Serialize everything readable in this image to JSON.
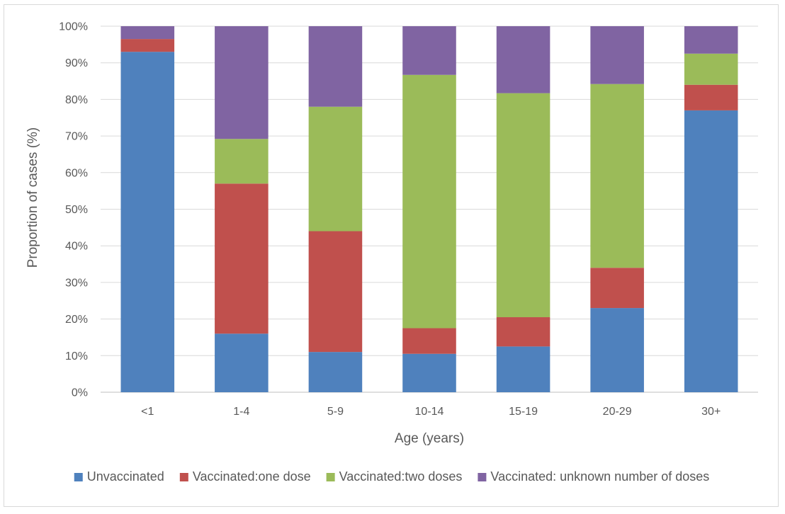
{
  "chart_data": {
    "type": "bar",
    "stacked": true,
    "xlabel": "Age (years)",
    "ylabel": "Proportion of cases (%)",
    "ylim": [
      0,
      100
    ],
    "y_tick_labels": [
      "0%",
      "10%",
      "20%",
      "30%",
      "40%",
      "50%",
      "60%",
      "70%",
      "80%",
      "90%",
      "100%"
    ],
    "grid": true,
    "legend_position": "bottom",
    "categories": [
      "<1",
      "1-4",
      "5-9",
      "10-14",
      "15-19",
      "20-29",
      "30+"
    ],
    "series": [
      {
        "name": "Unvaccinated",
        "color": "#4f81bd",
        "values": [
          93,
          16,
          11,
          10.5,
          12.5,
          23,
          77
        ]
      },
      {
        "name": "Vaccinated:one dose",
        "color": "#c0504d",
        "values": [
          3.5,
          41,
          33,
          7,
          8,
          11,
          7
        ]
      },
      {
        "name": "Vaccinated:two doses",
        "color": "#9bbb59",
        "values": [
          0,
          12.2,
          34,
          69.2,
          61.2,
          50.2,
          8.5
        ]
      },
      {
        "name": "Vaccinated: unknown number of doses",
        "color": "#8064a2",
        "values": [
          3.5,
          30.8,
          22,
          13.3,
          18.3,
          15.8,
          7.5
        ]
      }
    ]
  }
}
